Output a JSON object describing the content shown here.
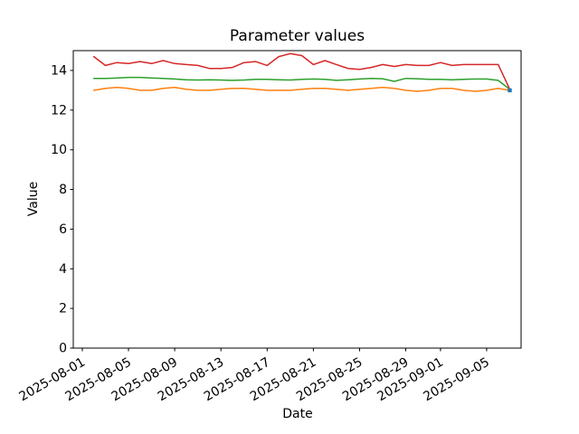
{
  "figure": {
    "background": "#ffffff"
  },
  "chart_data": {
    "type": "line",
    "title": "Parameter values",
    "xlabel": "Date",
    "ylabel": "Value",
    "grid": false,
    "legend": "none",
    "ylim": [
      0,
      15
    ],
    "yticks": [
      0,
      2,
      4,
      6,
      8,
      10,
      12,
      14
    ],
    "xticks": [
      "2025-08-01",
      "2025-08-05",
      "2025-08-09",
      "2025-08-13",
      "2025-08-17",
      "2025-08-21",
      "2025-08-25",
      "2025-08-29",
      "2025-09-01",
      "2025-09-05"
    ],
    "x_tick_rotation_deg": 30,
    "xlim_days": [
      -1.78,
      36.98
    ],
    "x_dates": [
      "2025-08-02",
      "2025-08-03",
      "2025-08-04",
      "2025-08-05",
      "2025-08-06",
      "2025-08-07",
      "2025-08-08",
      "2025-08-09",
      "2025-08-10",
      "2025-08-11",
      "2025-08-12",
      "2025-08-13",
      "2025-08-14",
      "2025-08-15",
      "2025-08-16",
      "2025-08-17",
      "2025-08-18",
      "2025-08-19",
      "2025-08-20",
      "2025-08-21",
      "2025-08-22",
      "2025-08-23",
      "2025-08-24",
      "2025-08-25",
      "2025-08-26",
      "2025-08-27",
      "2025-08-28",
      "2025-08-29",
      "2025-08-30",
      "2025-08-31",
      "2025-09-01",
      "2025-09-02",
      "2025-09-03",
      "2025-09-04",
      "2025-09-05",
      "2025-09-06",
      "2025-09-07"
    ],
    "series": [
      {
        "name": "red",
        "color": "#d62728",
        "line_width": 1.5,
        "values": [
          14.7,
          14.25,
          14.4,
          14.35,
          14.45,
          14.35,
          14.5,
          14.35,
          14.3,
          14.25,
          14.1,
          14.1,
          14.15,
          14.4,
          14.45,
          14.25,
          14.7,
          14.85,
          14.75,
          14.3,
          14.5,
          14.3,
          14.1,
          14.05,
          14.15,
          14.3,
          14.2,
          14.3,
          14.25,
          14.25,
          14.4,
          14.25,
          14.3,
          14.3,
          14.3,
          14.3,
          13.05
        ]
      },
      {
        "name": "green",
        "color": "#2ca02c",
        "line_width": 1.5,
        "values": [
          13.6,
          13.6,
          13.62,
          13.65,
          13.65,
          13.62,
          13.6,
          13.57,
          13.53,
          13.52,
          13.53,
          13.52,
          13.5,
          13.52,
          13.55,
          13.55,
          13.53,
          13.52,
          13.55,
          13.57,
          13.55,
          13.5,
          13.53,
          13.57,
          13.6,
          13.58,
          13.45,
          13.6,
          13.58,
          13.55,
          13.55,
          13.53,
          13.55,
          13.57,
          13.57,
          13.5,
          13.05
        ]
      },
      {
        "name": "orange",
        "color": "#ff7f0e",
        "line_width": 1.5,
        "values": [
          13.0,
          13.1,
          13.15,
          13.1,
          13.0,
          13.0,
          13.1,
          13.15,
          13.05,
          13.0,
          13.0,
          13.05,
          13.1,
          13.1,
          13.05,
          13.0,
          13.0,
          13.0,
          13.05,
          13.1,
          13.1,
          13.05,
          13.0,
          13.05,
          13.1,
          13.15,
          13.1,
          13.0,
          12.95,
          13.0,
          13.1,
          13.1,
          13.0,
          12.95,
          13.0,
          13.1,
          13.0
        ]
      }
    ],
    "end_marker": {
      "date": "2025-09-07",
      "value": 13.0,
      "color": "#1f77b4",
      "shape": "square"
    }
  }
}
